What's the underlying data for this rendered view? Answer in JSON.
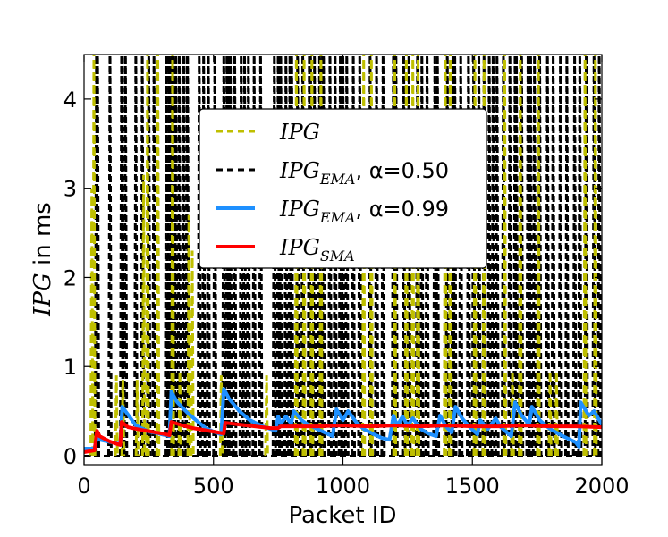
{
  "chart_data": {
    "type": "line",
    "xlabel": "Packet ID",
    "ylabel_main": "IPG",
    "ylabel_suffix": " in ms",
    "xlim": [
      0,
      2000
    ],
    "ylim": [
      -0.1,
      4.5
    ],
    "xticks": [
      "0",
      "500",
      "1000",
      "1500",
      "2000"
    ],
    "yticks": [
      "0",
      "1",
      "2",
      "3",
      "4"
    ],
    "legend_position": "upper-center",
    "grid": false,
    "legend": [
      {
        "main": "IPG",
        "sub": "",
        "tail": "",
        "color": "#bfbf00",
        "style": "dashed"
      },
      {
        "main": "IPG",
        "sub": "EMA",
        "tail": ", α=0.50",
        "color": "#000000",
        "style": "dashed"
      },
      {
        "main": "IPG",
        "sub": "EMA",
        "tail": ", α=0.99",
        "color": "#1e90ff",
        "style": "solid"
      },
      {
        "main": "IPG",
        "sub": "SMA",
        "tail": "",
        "color": "#ff0000",
        "style": "solid"
      }
    ],
    "series": [
      {
        "name": "IPG_EMA α=0.99",
        "color": "#1e90ff",
        "points": [
          [
            0,
            0.08
          ],
          [
            40,
            0.08
          ],
          [
            50,
            0.22
          ],
          [
            60,
            0.18
          ],
          [
            140,
            0.13
          ],
          [
            147,
            0.55
          ],
          [
            180,
            0.42
          ],
          [
            200,
            0.34
          ],
          [
            250,
            0.27
          ],
          [
            270,
            0.26
          ],
          [
            300,
            0.24
          ],
          [
            330,
            0.22
          ],
          [
            337,
            0.72
          ],
          [
            360,
            0.6
          ],
          [
            400,
            0.48
          ],
          [
            440,
            0.38
          ],
          [
            470,
            0.31
          ],
          [
            500,
            0.27
          ],
          [
            530,
            0.24
          ],
          [
            540,
            0.75
          ],
          [
            560,
            0.64
          ],
          [
            600,
            0.5
          ],
          [
            640,
            0.4
          ],
          [
            690,
            0.33
          ],
          [
            740,
            0.28
          ],
          [
            750,
            0.44
          ],
          [
            760,
            0.36
          ],
          [
            780,
            0.44
          ],
          [
            800,
            0.36
          ],
          [
            810,
            0.5
          ],
          [
            840,
            0.4
          ],
          [
            860,
            0.36
          ],
          [
            900,
            0.3
          ],
          [
            930,
            0.26
          ],
          [
            960,
            0.22
          ],
          [
            975,
            0.52
          ],
          [
            1000,
            0.4
          ],
          [
            1020,
            0.5
          ],
          [
            1050,
            0.38
          ],
          [
            1080,
            0.3
          ],
          [
            1120,
            0.24
          ],
          [
            1150,
            0.2
          ],
          [
            1180,
            0.18
          ],
          [
            1195,
            0.45
          ],
          [
            1210,
            0.34
          ],
          [
            1230,
            0.44
          ],
          [
            1250,
            0.34
          ],
          [
            1270,
            0.42
          ],
          [
            1300,
            0.3
          ],
          [
            1330,
            0.25
          ],
          [
            1360,
            0.22
          ],
          [
            1375,
            0.45
          ],
          [
            1400,
            0.32
          ],
          [
            1420,
            0.26
          ],
          [
            1435,
            0.55
          ],
          [
            1460,
            0.42
          ],
          [
            1490,
            0.32
          ],
          [
            1520,
            0.24
          ],
          [
            1530,
            0.4
          ],
          [
            1560,
            0.3
          ],
          [
            1590,
            0.42
          ],
          [
            1610,
            0.32
          ],
          [
            1650,
            0.22
          ],
          [
            1665,
            0.6
          ],
          [
            1690,
            0.45
          ],
          [
            1720,
            0.35
          ],
          [
            1730,
            0.55
          ],
          [
            1760,
            0.4
          ],
          [
            1800,
            0.3
          ],
          [
            1850,
            0.22
          ],
          [
            1900,
            0.15
          ],
          [
            1912,
            0.1
          ],
          [
            1918,
            0.6
          ],
          [
            1950,
            0.45
          ],
          [
            1970,
            0.5
          ],
          [
            2000,
            0.35
          ]
        ]
      },
      {
        "name": "IPG_SMA",
        "color": "#ff0000",
        "points": [
          [
            0,
            0.04
          ],
          [
            40,
            0.06
          ],
          [
            50,
            0.28
          ],
          [
            60,
            0.22
          ],
          [
            100,
            0.16
          ],
          [
            140,
            0.12
          ],
          [
            145,
            0.38
          ],
          [
            170,
            0.32
          ],
          [
            220,
            0.29
          ],
          [
            260,
            0.27
          ],
          [
            300,
            0.25
          ],
          [
            330,
            0.23
          ],
          [
            337,
            0.38
          ],
          [
            380,
            0.34
          ],
          [
            420,
            0.31
          ],
          [
            460,
            0.29
          ],
          [
            500,
            0.27
          ],
          [
            540,
            0.25
          ],
          [
            545,
            0.37
          ],
          [
            600,
            0.35
          ],
          [
            660,
            0.33
          ],
          [
            720,
            0.31
          ],
          [
            750,
            0.31
          ],
          [
            760,
            0.33
          ],
          [
            900,
            0.33
          ],
          [
            1000,
            0.34
          ],
          [
            1100,
            0.33
          ],
          [
            1200,
            0.34
          ],
          [
            1300,
            0.33
          ],
          [
            1400,
            0.34
          ],
          [
            1500,
            0.33
          ],
          [
            1600,
            0.33
          ],
          [
            1700,
            0.34
          ],
          [
            1800,
            0.33
          ],
          [
            1900,
            0.33
          ],
          [
            2000,
            0.32
          ]
        ]
      },
      {
        "name": "IPG_EMA α=0.50",
        "color": "#000000",
        "spikes_x": [
          48,
          52,
          100,
          145,
          148,
          160,
          200,
          225,
          250,
          270,
          318,
          328,
          338,
          345,
          355,
          368,
          385,
          398,
          400,
          445,
          462,
          480,
          505,
          540,
          552,
          560,
          565,
          582,
          607,
          620,
          635,
          657,
          682,
          735,
          750,
          755,
          760,
          780,
          795,
          802,
          825,
          845,
          870,
          875,
          890,
          910,
          921,
          925,
          950,
          970,
          990,
          1000,
          1015,
          1040,
          1065,
          1105,
          1130,
          1155,
          1195,
          1205,
          1235,
          1255,
          1288,
          1305,
          1325,
          1355,
          1365,
          1403,
          1425,
          1432,
          1455,
          1485,
          1505,
          1525,
          1545,
          1565,
          1580,
          1595,
          1620,
          1645,
          1665,
          1670,
          1690,
          1715,
          1725,
          1740,
          1760,
          1790,
          1812,
          1840,
          1865,
          1895,
          1915,
          1940,
          1970,
          1990
        ],
        "spike_peak": 4.6,
        "baseline": 0.0
      },
      {
        "name": "IPG",
        "color": "#bfbf00",
        "spikes": [
          [
            30,
            3.0
          ],
          [
            38,
            4.6
          ],
          [
            125,
            0.9
          ],
          [
            150,
            0.85
          ],
          [
            205,
            0.85
          ],
          [
            230,
            3.15
          ],
          [
            245,
            4.6
          ],
          [
            285,
            4.6
          ],
          [
            342,
            4.6
          ],
          [
            370,
            0.95
          ],
          [
            405,
            2.7
          ],
          [
            418,
            2.3
          ],
          [
            530,
            0.9
          ],
          [
            705,
            0.9
          ],
          [
            820,
            4.6
          ],
          [
            850,
            4.6
          ],
          [
            880,
            4.6
          ],
          [
            915,
            4.6
          ],
          [
            1080,
            4.6
          ],
          [
            1110,
            4.6
          ],
          [
            1200,
            4.6
          ],
          [
            1245,
            4.6
          ],
          [
            1270,
            4.6
          ],
          [
            1290,
            4.6
          ],
          [
            1395,
            4.6
          ],
          [
            1415,
            4.6
          ],
          [
            1510,
            4.6
          ],
          [
            1545,
            4.6
          ],
          [
            1625,
            4.6
          ],
          [
            1655,
            0.95
          ],
          [
            1685,
            4.6
          ],
          [
            1755,
            4.6
          ],
          [
            1800,
            0.95
          ],
          [
            1825,
            0.95
          ],
          [
            1935,
            4.6
          ],
          [
            1975,
            4.6
          ]
        ]
      }
    ]
  }
}
